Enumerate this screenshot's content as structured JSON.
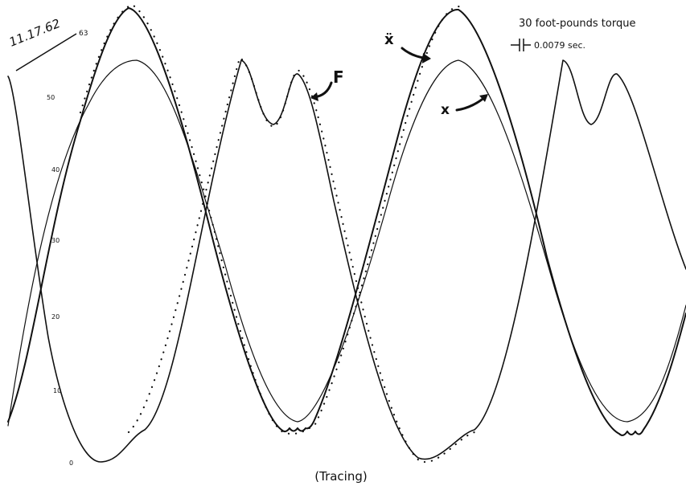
{
  "date": "11.17.62",
  "date_note": "63",
  "legend": {
    "torque": "30 foot-pounds torque",
    "time_mark": "0.0079 sec."
  },
  "labels": {
    "x_ddot": "ẍ",
    "x": "x",
    "force": "F"
  },
  "scale": [
    "50",
    "40",
    "30",
    "20",
    "10",
    "0"
  ],
  "caption": "(Tracing)"
}
